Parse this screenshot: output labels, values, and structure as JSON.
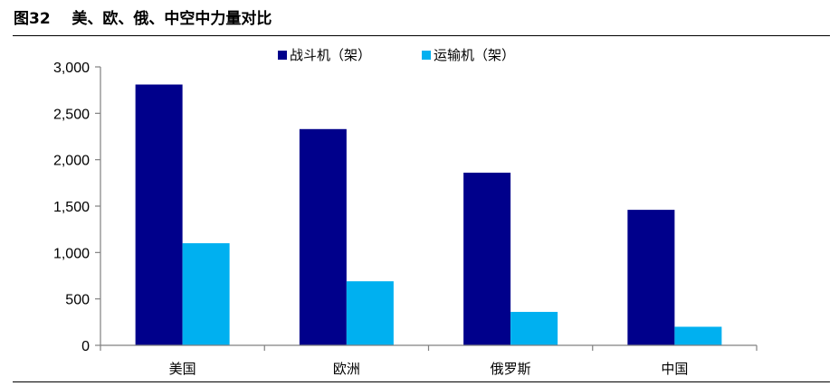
{
  "figure": {
    "title": "图32    美、欧、俄、中空中力量对比"
  },
  "chart_data": {
    "type": "bar",
    "title": "",
    "xlabel": "",
    "ylabel": "",
    "categories": [
      "美国",
      "欧洲",
      "俄罗斯",
      "中国"
    ],
    "series": [
      {
        "name": "战斗机（架）",
        "values": [
          2810,
          2330,
          1860,
          1460
        ],
        "color": "#00008B"
      },
      {
        "name": "运输机（架）",
        "values": [
          1100,
          690,
          360,
          200
        ],
        "color": "#00B0F0"
      }
    ],
    "ylim": [
      0,
      3000
    ],
    "yticks": [
      0,
      500,
      1000,
      1500,
      2000,
      2500,
      3000
    ],
    "ytick_labels": [
      "0",
      "500",
      "1,000",
      "1,500",
      "2,000",
      "2,500",
      "3,000"
    ],
    "grid": false,
    "legend_position": "top-center"
  }
}
